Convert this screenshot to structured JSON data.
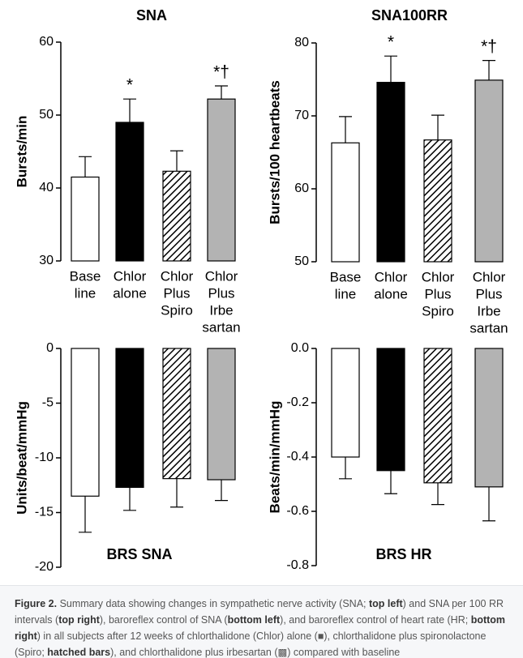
{
  "chart_data": [
    {
      "type": "bar",
      "title": "SNA",
      "y_label": "Bursts/min",
      "categories": [
        [
          "Base",
          "line"
        ],
        [
          "Chlor",
          "alone"
        ],
        [
          "Chlor",
          "Plus",
          "Spiro"
        ],
        [
          "Chlor",
          "Plus",
          "Irbe",
          "sartan"
        ]
      ],
      "values": [
        41.5,
        49.0,
        42.3,
        52.2
      ],
      "errors": [
        2.8,
        3.2,
        2.8,
        1.8
      ],
      "value_annotations": [
        null,
        "*",
        null,
        "*†"
      ],
      "bar_styles": [
        "#ffffff",
        "#000000",
        "hatch",
        "#b3b3b3"
      ],
      "ylim": [
        30,
        60
      ],
      "yticks": [
        30,
        40,
        50,
        60
      ]
    },
    {
      "type": "bar",
      "title": "SNA100RR",
      "y_label": "Bursts/100 heartbeats",
      "categories": [
        [
          "Base",
          "line"
        ],
        [
          "Chlor",
          "alone"
        ],
        [
          "Chlor",
          "Plus",
          "Spiro"
        ],
        [
          "Chlor",
          "Plus",
          "Irbe",
          "sartan"
        ]
      ],
      "values": [
        66.3,
        74.6,
        66.7,
        74.9
      ],
      "errors": [
        3.6,
        3.6,
        3.4,
        2.7
      ],
      "value_annotations": [
        null,
        "*",
        null,
        "*†"
      ],
      "bar_styles": [
        "#ffffff",
        "#000000",
        "hatch",
        "#b3b3b3"
      ],
      "ylim": [
        50,
        80
      ],
      "yticks": [
        50,
        60,
        70,
        80
      ]
    },
    {
      "type": "bar",
      "title": "BRS SNA",
      "y_label": "Units/beat/mmHg",
      "values": [
        -13.5,
        -12.7,
        -11.9,
        -12.0
      ],
      "errors": [
        3.3,
        2.1,
        2.6,
        1.9
      ],
      "bar_styles": [
        "#ffffff",
        "#000000",
        "hatch",
        "#b3b3b3"
      ],
      "ylim": [
        -20,
        0
      ],
      "yticks": [
        0,
        -5,
        -10,
        -15,
        -20
      ]
    },
    {
      "type": "bar",
      "title": "BRS HR",
      "y_label": "Beats/min/mmHg",
      "values": [
        -0.4,
        -0.45,
        -0.495,
        -0.51
      ],
      "errors": [
        0.08,
        0.085,
        0.08,
        0.125
      ],
      "bar_styles": [
        "#ffffff",
        "#000000",
        "hatch",
        "#b3b3b3"
      ],
      "ylim": [
        -0.8,
        0
      ],
      "yticks": [
        {
          "value": 0,
          "label": "0.0"
        },
        -0.2,
        -0.4,
        -0.6,
        {
          "value": -0.8,
          "label": "-0.8"
        }
      ]
    }
  ],
  "caption": {
    "parts": [
      {
        "text": "Figure 2.",
        "bold": true
      },
      {
        "text": " Summary data showing changes in sympathetic nerve activity (SNA; ",
        "bold": false
      },
      {
        "text": "top left",
        "bold": true
      },
      {
        "text": ") and SNA per 100 RR intervals (",
        "bold": false
      },
      {
        "text": "top right",
        "bold": true
      },
      {
        "text": "), baroreflex control of SNA (",
        "bold": false
      },
      {
        "text": "bottom left",
        "bold": true
      },
      {
        "text": "), and baroreflex control of heart rate (HR; ",
        "bold": false
      },
      {
        "text": "bottom right",
        "bold": true
      },
      {
        "text": ") in all subjects after 12 weeks of chlorthalidone (Chlor) alone (■), chlorthalidone plus spironolactone (Spiro; ",
        "bold": false
      },
      {
        "text": "hatched bars",
        "bold": true
      },
      {
        "text": "), and chlorthalidone plus irbesartan (▩) compared with baseline",
        "bold": false
      }
    ]
  }
}
